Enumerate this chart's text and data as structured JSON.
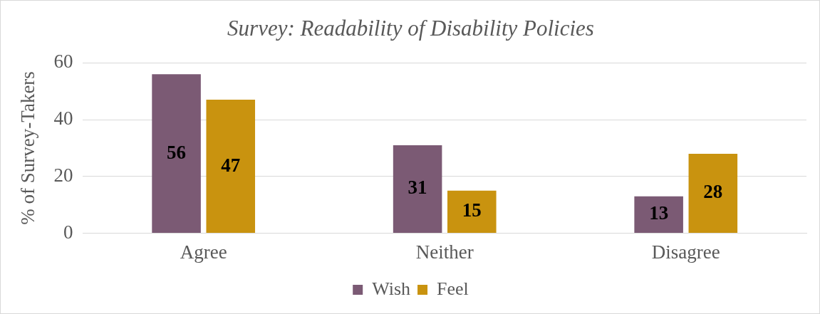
{
  "chart_data": {
    "type": "bar",
    "title": "Survey: Readability of Disability Policies",
    "ylabel": "% of Survey-Takers",
    "categories": [
      "Agree",
      "Neither",
      "Disagree"
    ],
    "series": [
      {
        "name": "Wish",
        "color": "#7b5a74",
        "values": [
          56,
          31,
          13
        ]
      },
      {
        "name": "Feel",
        "color": "#c9930f",
        "values": [
          47,
          15,
          28
        ]
      }
    ],
    "ylim": [
      0,
      60
    ],
    "yticks": [
      0,
      20,
      40,
      60
    ],
    "grid": "y",
    "legend": "bottom",
    "data_labels": true
  }
}
